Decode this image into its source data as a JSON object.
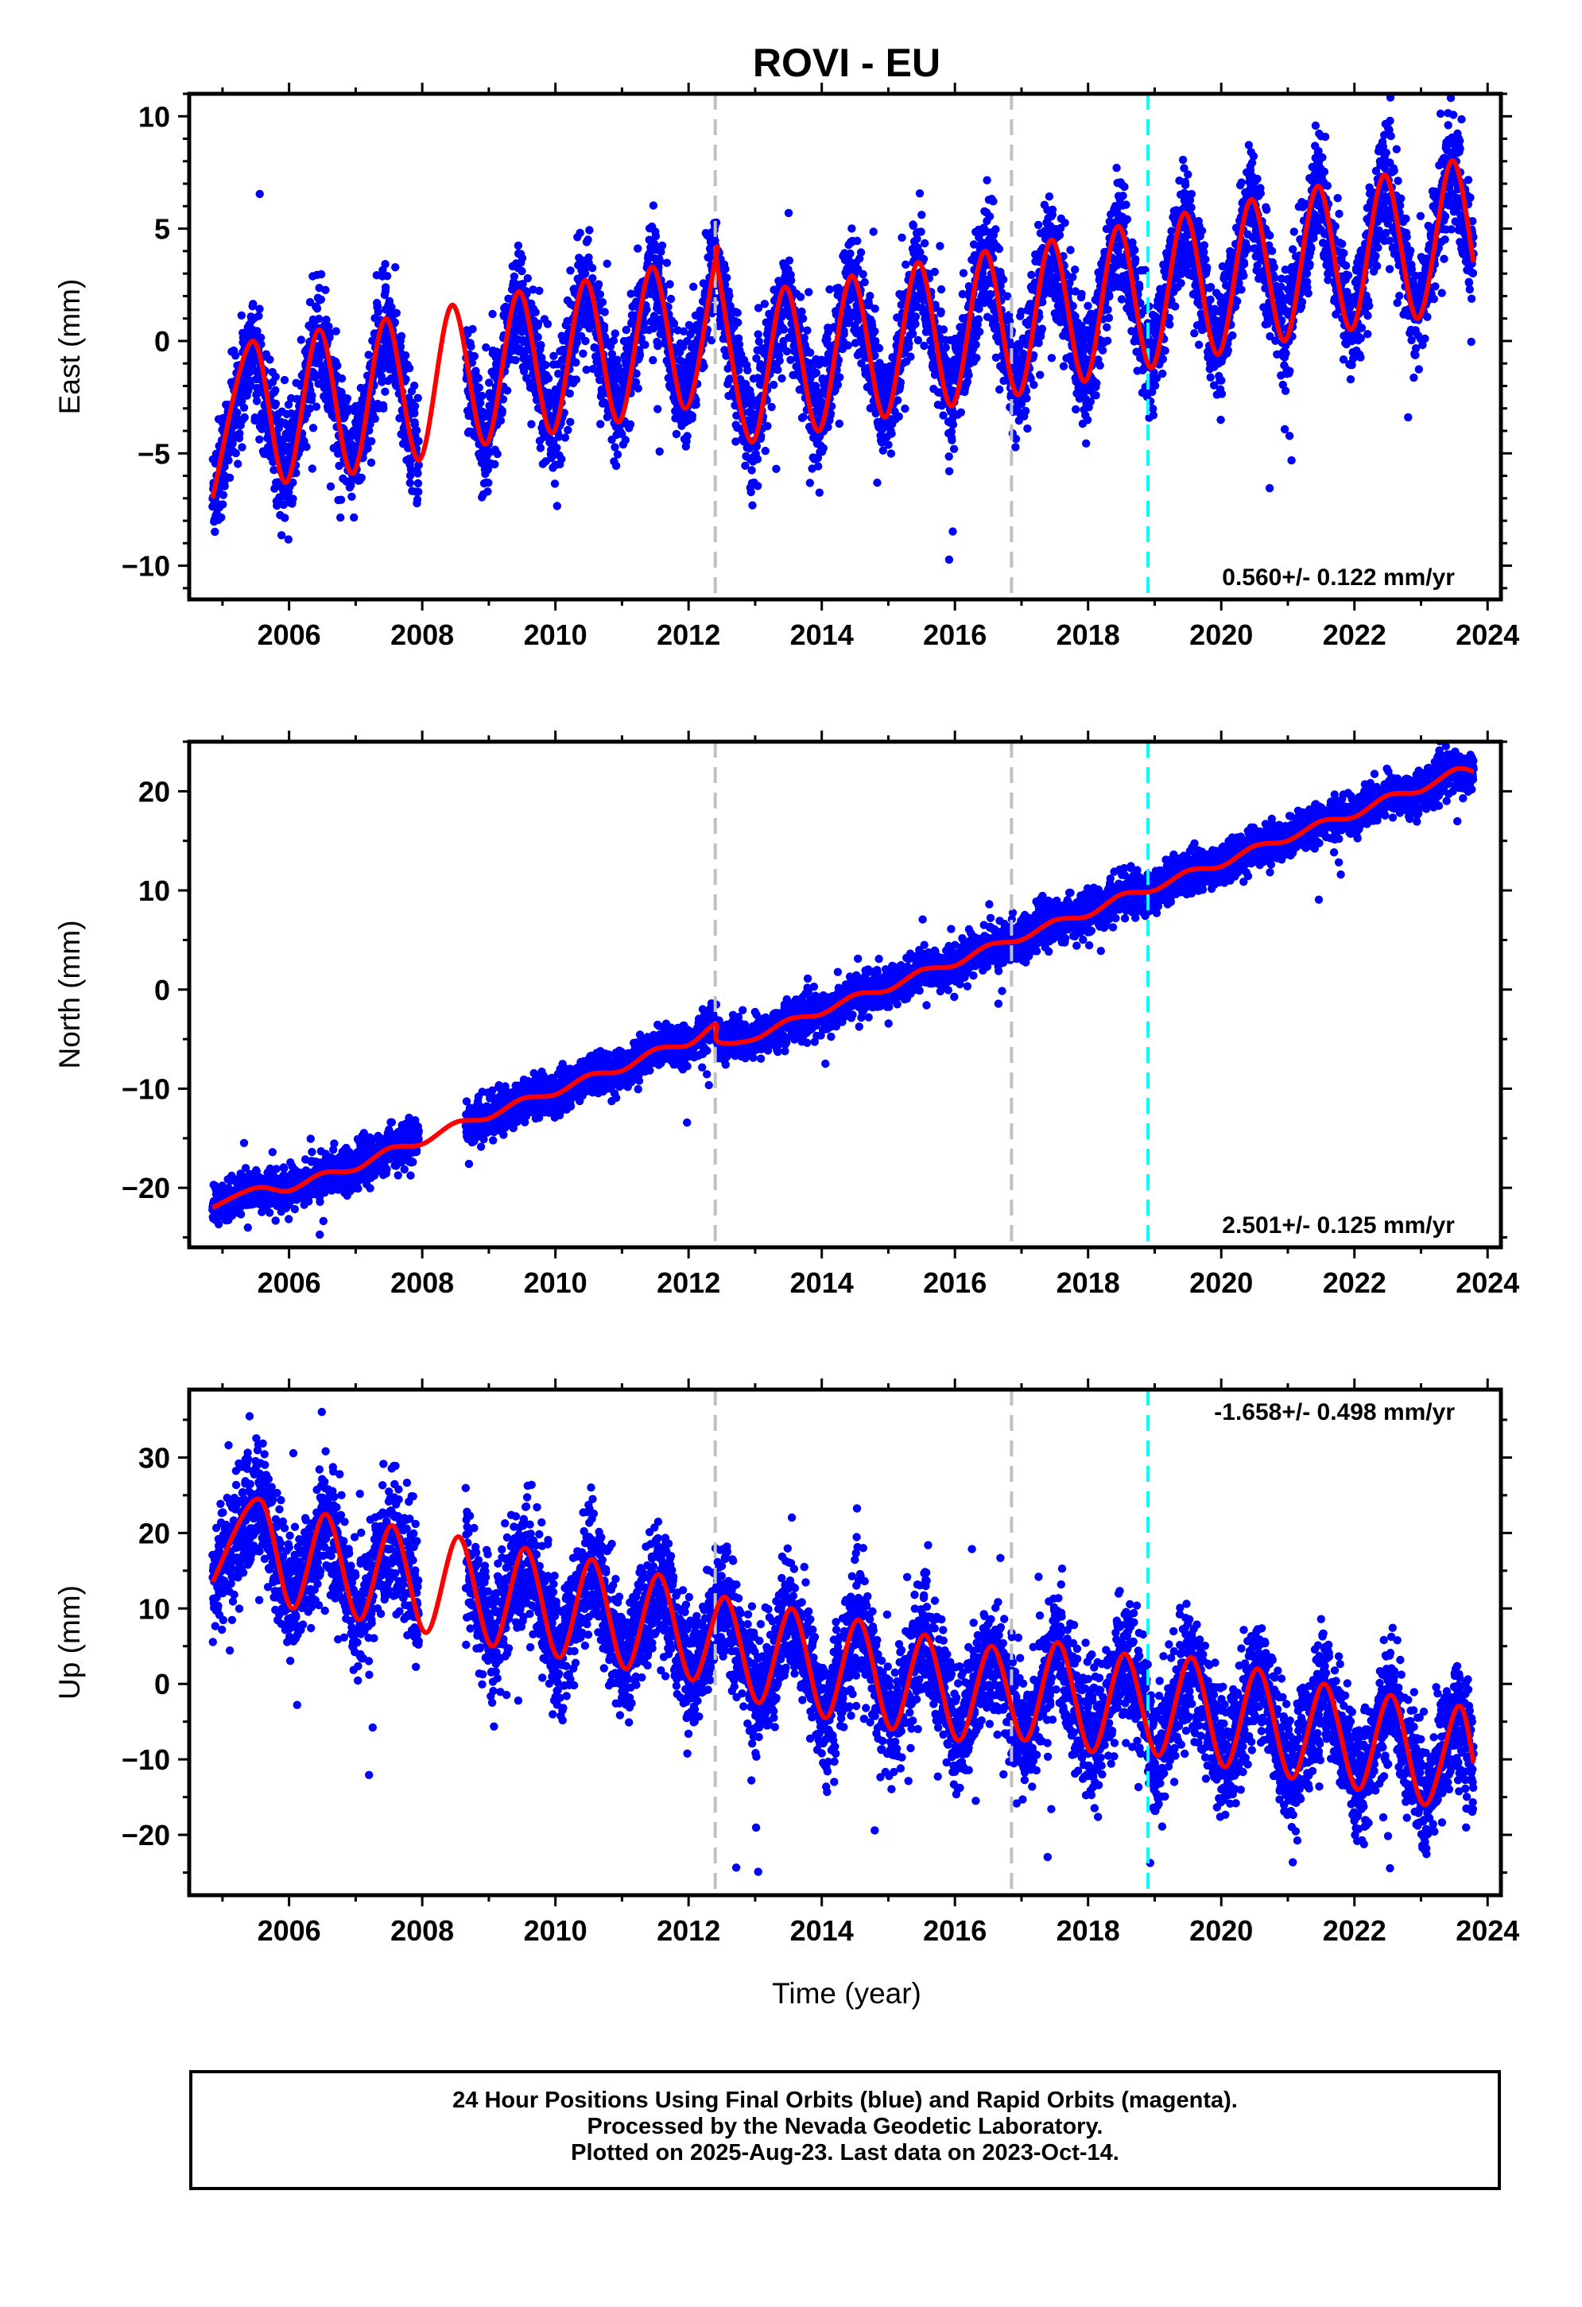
{
  "title": "ROVI - EU",
  "xlabel": "Time (year)",
  "caption": {
    "line1": "24 Hour Positions Using Final Orbits (blue) and Rapid Orbits (magenta).",
    "line2": "Processed by the Nevada Geodetic Laboratory.",
    "line3": "Plotted on 2025-Aug-23. Last data on 2023-Oct-14."
  },
  "colors": {
    "data_points": "#0000ff",
    "model_fit": "#ff0000",
    "equipment_change": "#c0c0c0",
    "earthquake": "#00ffff"
  },
  "chart_data": [
    {
      "type": "scatter",
      "panel": "east",
      "ylabel": "East (mm)",
      "xlim": [
        2004.5,
        2024.2
      ],
      "ylim": [
        -11.5,
        11
      ],
      "yticks": [
        -10,
        -5,
        0,
        5,
        10
      ],
      "xticks": [
        2006,
        2008,
        2010,
        2012,
        2014,
        2016,
        2018,
        2020,
        2022,
        2024
      ],
      "rate_label": "0.560+/- 0.122 mm/yr",
      "rate_label_position": "bottom-right",
      "series": [
        {
          "type": "scatter",
          "data_span": [
            2004.85,
            2023.79
          ],
          "gap": [
            2007.95,
            2008.65
          ],
          "trend": {
            "start": -3.8,
            "slope": 0.56
          },
          "annual_amplitude": 3.3,
          "annual_peak_phase": 0.45,
          "scatter_sd": 1.2
        },
        {
          "type": "line",
          "x": [
            2004.85,
            2005.45,
            2005.95,
            2006.45,
            2006.95,
            2007.45,
            2007.95,
            2008.45,
            2008.95,
            2009.45,
            2009.95,
            2010.45,
            2010.95,
            2011.45,
            2011.95,
            2012.4,
            2012.45,
            2012.95,
            2013.45,
            2013.95,
            2014.45,
            2014.95,
            2015.45,
            2015.95,
            2016.45,
            2016.95,
            2017.45,
            2017.95,
            2018.45,
            2018.95,
            2019.45,
            2019.95,
            2020.45,
            2020.95,
            2021.45,
            2021.95,
            2022.45,
            2022.95,
            2023.45,
            2023.79
          ],
          "y": [
            -7.0,
            0.0,
            -6.3,
            0.5,
            -5.9,
            1.0,
            -5.3,
            1.6,
            -4.6,
            2.2,
            -4.1,
            2.7,
            -3.6,
            3.3,
            -3.0,
            3.6,
            3.0,
            -4.5,
            2.4,
            -4.0,
            2.9,
            -3.4,
            3.5,
            -2.9,
            4.0,
            -2.4,
            4.5,
            -1.8,
            5.1,
            -1.2,
            5.7,
            -0.6,
            6.3,
            0.0,
            6.9,
            0.5,
            7.4,
            1.0,
            8.0,
            3.5
          ]
        }
      ]
    },
    {
      "type": "scatter",
      "panel": "north",
      "ylabel": "North (mm)",
      "xlim": [
        2004.5,
        2024.2
      ],
      "ylim": [
        -26,
        25
      ],
      "yticks": [
        -20,
        -10,
        0,
        10,
        20
      ],
      "xticks": [
        2006,
        2008,
        2010,
        2012,
        2014,
        2016,
        2018,
        2020,
        2022,
        2024
      ],
      "rate_label": "2.501+/- 0.125 mm/yr",
      "rate_label_position": "bottom-right",
      "series": [
        {
          "type": "scatter",
          "data_span": [
            2004.85,
            2023.79
          ],
          "gap": [
            2007.95,
            2008.65
          ],
          "trend": {
            "start": -22.5,
            "slope": 2.3
          },
          "annual_amplitude": 0.8,
          "annual_peak_phase": 0.5,
          "scatter_sd": 1.0
        },
        {
          "type": "line",
          "x": [
            2004.85,
            2005.5,
            2006.0,
            2006.5,
            2007.0,
            2007.5,
            2008.0,
            2008.5,
            2009.0,
            2009.5,
            2010.0,
            2010.5,
            2011.0,
            2011.5,
            2012.0,
            2012.4,
            2012.45,
            2013.0,
            2013.5,
            2014.0,
            2014.5,
            2015.0,
            2015.5,
            2016.0,
            2016.5,
            2017.0,
            2017.5,
            2018.0,
            2018.5,
            2019.0,
            2019.5,
            2020.0,
            2020.5,
            2021.0,
            2021.5,
            2022.0,
            2022.5,
            2023.0,
            2023.5,
            2023.79
          ],
          "y": [
            -22.0,
            -20.0,
            -20.3,
            -18.5,
            -18.2,
            -16.0,
            -15.6,
            -13.4,
            -13.0,
            -11.0,
            -10.6,
            -8.6,
            -8.2,
            -6.0,
            -5.6,
            -3.5,
            -5.3,
            -5.0,
            -3.0,
            -2.5,
            -0.5,
            -0.1,
            2.0,
            2.4,
            4.5,
            5.0,
            7.0,
            7.4,
            9.6,
            10.0,
            12.0,
            12.4,
            14.5,
            15.0,
            17.0,
            17.4,
            19.6,
            20.0,
            22.2,
            22.0
          ]
        }
      ]
    },
    {
      "type": "scatter",
      "panel": "up",
      "ylabel": "Up (mm)",
      "xlim": [
        2004.5,
        2024.2
      ],
      "ylim": [
        -28,
        39
      ],
      "yticks": [
        -20,
        -10,
        0,
        10,
        20,
        30
      ],
      "xticks": [
        2006,
        2008,
        2010,
        2012,
        2014,
        2016,
        2018,
        2020,
        2022,
        2024
      ],
      "rate_label": "-1.658+/- 0.498 mm/yr",
      "rate_label_position": "top-right",
      "series": [
        {
          "type": "scatter",
          "data_span": [
            2004.85,
            2023.79
          ],
          "gap": [
            2007.95,
            2008.65
          ],
          "trend": {
            "start": 17,
            "slope": -1.6
          },
          "annual_amplitude": 7.5,
          "annual_peak_phase": 0.55,
          "scatter_sd": 4.0
        },
        {
          "type": "line",
          "x": [
            2004.85,
            2005.55,
            2006.05,
            2006.55,
            2007.05,
            2007.55,
            2008.05,
            2008.55,
            2009.05,
            2009.55,
            2010.05,
            2010.55,
            2011.05,
            2011.55,
            2012.05,
            2012.55,
            2013.05,
            2013.55,
            2014.05,
            2014.55,
            2015.05,
            2015.55,
            2016.05,
            2016.55,
            2017.05,
            2017.55,
            2018.05,
            2018.55,
            2019.05,
            2019.55,
            2020.05,
            2020.55,
            2021.05,
            2021.55,
            2022.05,
            2022.55,
            2023.05,
            2023.55,
            2023.79
          ],
          "y": [
            13.5,
            24.5,
            10.0,
            22.5,
            8.5,
            21.0,
            6.8,
            19.5,
            5.0,
            18.0,
            3.5,
            16.5,
            2.0,
            14.5,
            0.5,
            11.5,
            -2.5,
            10.0,
            -4.5,
            8.5,
            -6.0,
            6.5,
            -7.5,
            5.0,
            -7.5,
            5.5,
            -9.0,
            4.0,
            -9.5,
            3.5,
            -11.0,
            2.0,
            -12.5,
            0.0,
            -14.0,
            -1.5,
            -16.0,
            -3.0,
            -10.5
          ]
        }
      ]
    }
  ],
  "event_lines": [
    {
      "x": 2012.4,
      "kind": "equipment_change"
    },
    {
      "x": 2016.85,
      "kind": "equipment_change"
    },
    {
      "x": 2018.9,
      "kind": "earthquake"
    }
  ]
}
